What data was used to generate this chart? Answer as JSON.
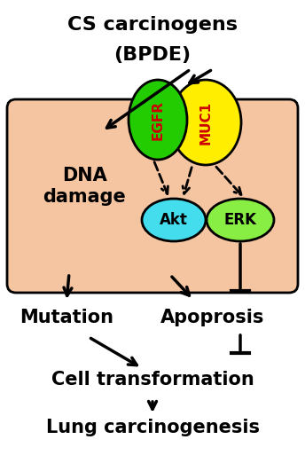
{
  "title_line1": "CS carcinogens",
  "title_line2": "(BPDE)",
  "cell_box_color": "#F5C4A0",
  "egfr_color": "#22CC00",
  "egfr_label_color": "#CC0000",
  "muc1_color": "#FFEE00",
  "muc1_label_color": "#CC0000",
  "akt_color": "#44DDEE",
  "akt_label_color": "#000000",
  "erk_color": "#88EE44",
  "erk_label_color": "#000000",
  "dna_label": "DNA\ndamage",
  "mutation_label": "Mutation",
  "apoptosis_label": "Apoprosis",
  "cell_transform_label": "Cell transformation",
  "lung_label": "Lung carcinogenesis",
  "background_color": "#FFFFFF",
  "arrow_color": "#000000"
}
